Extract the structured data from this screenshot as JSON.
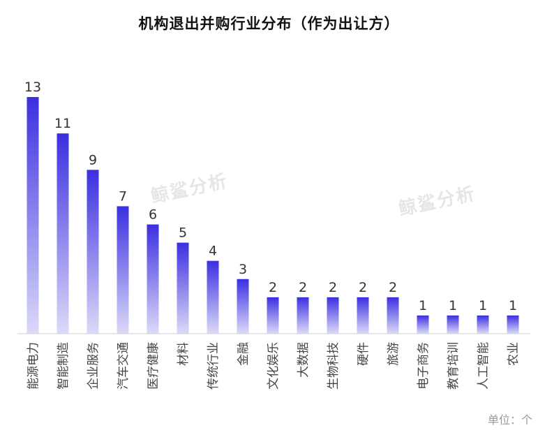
{
  "chart_data": {
    "type": "bar",
    "title": "机构退出并购行业分布（作为出让方）",
    "categories": [
      "能源电力",
      "智能制造",
      "企业服务",
      "汽车交通",
      "医疗健康",
      "材料",
      "传统行业",
      "金融",
      "文化娱乐",
      "大数据",
      "生物科技",
      "硬件",
      "旅游",
      "电子商务",
      "教育培训",
      "人工智能",
      "农业"
    ],
    "values": [
      13,
      11,
      9,
      7,
      6,
      5,
      4,
      3,
      2,
      2,
      2,
      2,
      2,
      1,
      1,
      1,
      1
    ],
    "ylim": [
      0,
      13
    ],
    "grid": false,
    "legend": "none",
    "unit": "单位：个",
    "colors": {
      "bar_top": "#3b2fe0",
      "bar_bottom": "#dcdaf8",
      "label": "#333333",
      "tick": "#444444"
    }
  },
  "watermark": "鲸鲨分析"
}
